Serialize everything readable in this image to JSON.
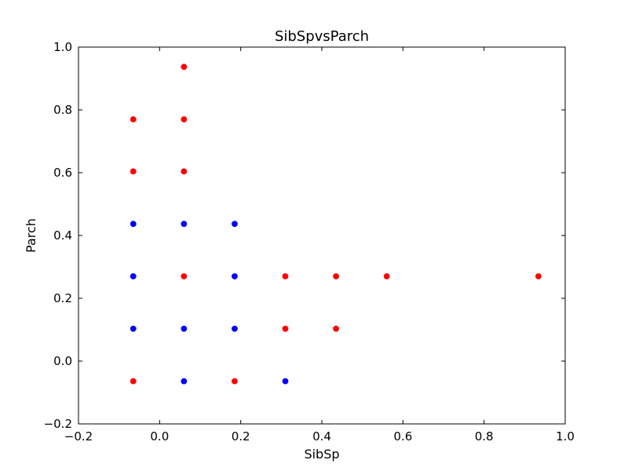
{
  "chart_data": {
    "type": "scatter",
    "title": "SibSpvsParch",
    "xlabel": "SibSp",
    "ylabel": "Parch",
    "xlim": [
      -0.2,
      1.0
    ],
    "ylim": [
      -0.2,
      1.0
    ],
    "xticks": [
      -0.2,
      0.0,
      0.2,
      0.4,
      0.6,
      0.8,
      1.0
    ],
    "yticks": [
      -0.2,
      0.0,
      0.2,
      0.4,
      0.6,
      0.8,
      1.0
    ],
    "xtick_labels": [
      "−0.2",
      "0.0",
      "0.2",
      "0.4",
      "0.6",
      "0.8",
      "1.0"
    ],
    "ytick_labels": [
      "−0.2",
      "0.0",
      "0.2",
      "0.4",
      "0.6",
      "0.8",
      "1.0"
    ],
    "grid": false,
    "legend": false,
    "series": [
      {
        "color": "#0000ff",
        "points": [
          [
            -0.065,
            0.437
          ],
          [
            0.06,
            0.437
          ],
          [
            0.185,
            0.437
          ],
          [
            -0.065,
            0.27
          ],
          [
            0.185,
            0.27
          ],
          [
            -0.065,
            0.103
          ],
          [
            0.06,
            0.103
          ],
          [
            0.185,
            0.103
          ],
          [
            0.06,
            -0.064
          ],
          [
            0.31,
            -0.064
          ]
        ]
      },
      {
        "color": "#ff0000",
        "points": [
          [
            0.06,
            0.937
          ],
          [
            -0.065,
            0.77
          ],
          [
            0.06,
            0.77
          ],
          [
            -0.065,
            0.604
          ],
          [
            0.06,
            0.604
          ],
          [
            0.06,
            0.27
          ],
          [
            0.31,
            0.27
          ],
          [
            0.435,
            0.27
          ],
          [
            0.56,
            0.27
          ],
          [
            0.934,
            0.27
          ],
          [
            0.31,
            0.103
          ],
          [
            0.435,
            0.103
          ],
          [
            -0.065,
            -0.064
          ],
          [
            0.185,
            -0.064
          ]
        ]
      }
    ]
  }
}
